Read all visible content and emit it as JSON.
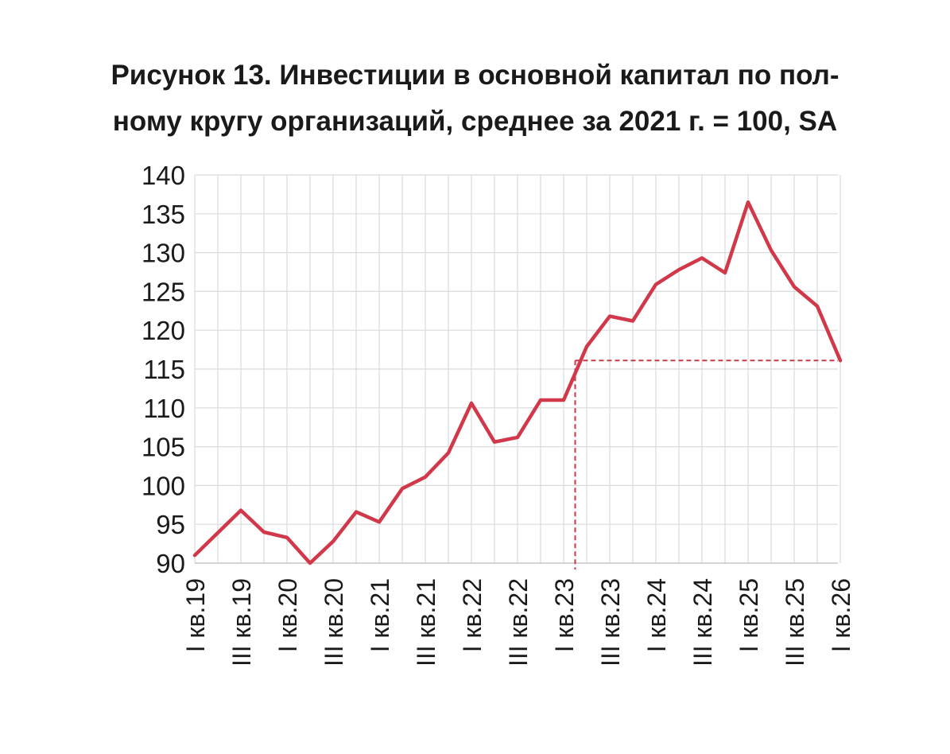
{
  "chart_data": {
    "type": "line",
    "title_lines": [
      "Рисунок 13. Инвестиции в основной капитал по пол-",
      "ному кругу организаций, среднее за 2021 г. = 100, SA"
    ],
    "xlabel": "",
    "ylabel": "",
    "ylim": [
      90,
      140
    ],
    "y_ticks": [
      140,
      135,
      130,
      125,
      120,
      115,
      110,
      105,
      100,
      95,
      90
    ],
    "grid": true,
    "x_tick_labels": [
      "I кв.19",
      "III кв.19",
      "I кв.20",
      "III кв.20",
      "I кв.21",
      "III кв.21",
      "I кв.22",
      "III кв.22",
      "I кв.23",
      "III кв.23",
      "I кв.24",
      "III кв.24",
      "I кв.25",
      "III кв.25",
      "I кв.26"
    ],
    "series": [
      {
        "color": "#d1394a",
        "values": [
          91.0,
          93.9,
          96.8,
          94.0,
          93.3,
          90.0,
          92.8,
          96.6,
          95.3,
          99.6,
          101.1,
          104.2,
          110.6,
          105.6,
          106.2,
          111.0,
          111.0,
          117.9,
          121.8,
          121.2,
          125.9,
          127.8,
          129.3,
          127.4,
          136.5,
          130.3,
          125.6,
          123.1,
          116.1
        ]
      }
    ],
    "reference_line": {
      "color": "#c53a48",
      "from_x_index": 16.5,
      "value": 116.1
    }
  }
}
